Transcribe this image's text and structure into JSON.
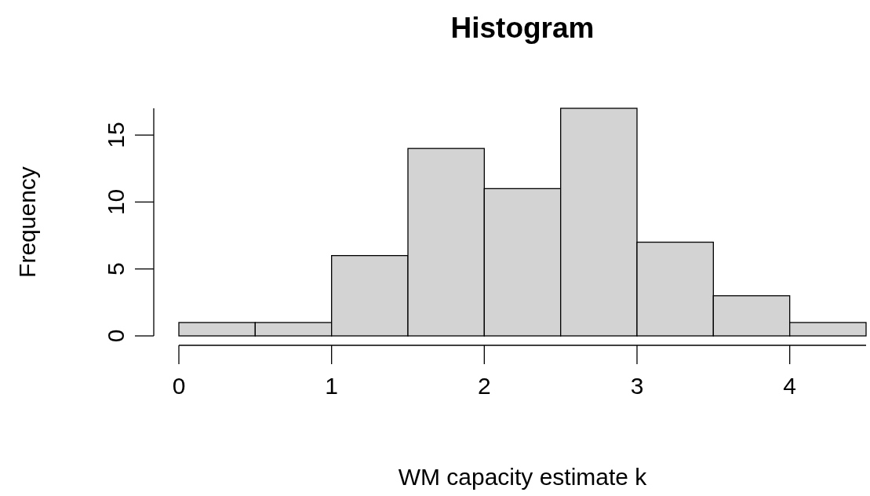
{
  "chart_data": {
    "type": "histogram",
    "title": "Histogram",
    "xlabel": "WM capacity estimate k",
    "ylabel": "Frequency",
    "bins": [
      0,
      0.5,
      1,
      1.5,
      2,
      2.5,
      3,
      3.5,
      4,
      4.5
    ],
    "values": [
      1,
      1,
      6,
      14,
      11,
      17,
      7,
      3,
      1
    ],
    "color": "#d3d3d3",
    "xlim": [
      0,
      4.5
    ],
    "xticks": [
      0,
      1,
      2,
      3,
      4
    ],
    "ylim": [
      0,
      17
    ],
    "yticks": [
      0,
      5,
      10,
      15
    ]
  }
}
